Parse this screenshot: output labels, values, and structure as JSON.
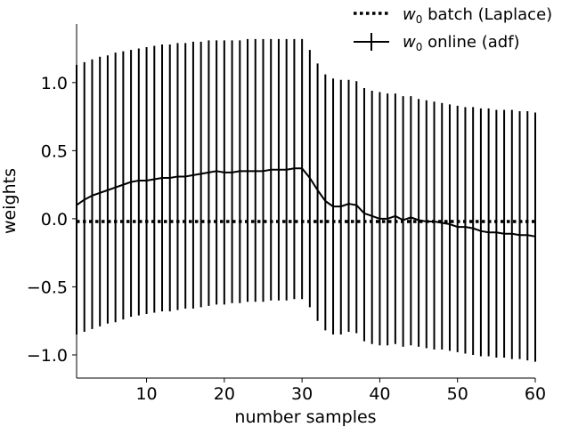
{
  "chart_data": {
    "type": "line",
    "title": "",
    "xlabel": "number samples",
    "ylabel": "weights",
    "xlim": [
      1,
      60
    ],
    "ylim": [
      -1.17,
      1.43
    ],
    "xticks": [
      10,
      20,
      30,
      40,
      50,
      60
    ],
    "yticks": [
      1.0,
      0.5,
      0.0,
      -0.5,
      -1.0
    ],
    "ytick_labels": [
      "1.0",
      "0.5",
      "0.0",
      "−0.5",
      "−1.0"
    ],
    "grid": false,
    "legend_position": "top-right",
    "series": [
      {
        "name": "batch",
        "legend_label": "w0 batch (Laplace)",
        "legend_symbol": "w",
        "legend_subscript": "0",
        "legend_text": " batch (Laplace)",
        "style": "dotted",
        "color": "#000000",
        "x": [
          1,
          60
        ],
        "y": [
          -0.02,
          -0.02
        ]
      },
      {
        "name": "online",
        "legend_label": "w0 online (adf)",
        "legend_symbol": "w",
        "legend_subscript": "0",
        "legend_text": " online (adf)",
        "style": "solid",
        "color": "#000000",
        "error_bars": true,
        "x": [
          1,
          2,
          3,
          4,
          5,
          6,
          7,
          8,
          9,
          10,
          11,
          12,
          13,
          14,
          15,
          16,
          17,
          18,
          19,
          20,
          21,
          22,
          23,
          24,
          25,
          26,
          27,
          28,
          29,
          30,
          31,
          32,
          33,
          34,
          35,
          36,
          37,
          38,
          39,
          40,
          41,
          42,
          43,
          44,
          45,
          46,
          47,
          48,
          49,
          50,
          51,
          52,
          53,
          54,
          55,
          56,
          57,
          58,
          59,
          60
        ],
        "y": [
          0.1,
          0.14,
          0.17,
          0.19,
          0.21,
          0.23,
          0.25,
          0.27,
          0.28,
          0.28,
          0.29,
          0.3,
          0.3,
          0.31,
          0.31,
          0.32,
          0.33,
          0.34,
          0.35,
          0.34,
          0.34,
          0.35,
          0.35,
          0.35,
          0.35,
          0.36,
          0.36,
          0.36,
          0.37,
          0.37,
          0.3,
          0.21,
          0.13,
          0.09,
          0.09,
          0.11,
          0.1,
          0.04,
          0.02,
          0.0,
          0.0,
          0.02,
          -0.01,
          0.01,
          -0.01,
          -0.02,
          -0.02,
          -0.03,
          -0.04,
          -0.06,
          -0.06,
          -0.07,
          -0.09,
          -0.1,
          -0.1,
          -0.11,
          -0.11,
          -0.12,
          -0.12,
          -0.13
        ],
        "upper": [
          1.13,
          1.15,
          1.17,
          1.19,
          1.2,
          1.22,
          1.23,
          1.24,
          1.25,
          1.26,
          1.27,
          1.28,
          1.28,
          1.29,
          1.29,
          1.3,
          1.3,
          1.31,
          1.31,
          1.31,
          1.31,
          1.31,
          1.32,
          1.32,
          1.32,
          1.32,
          1.32,
          1.32,
          1.32,
          1.32,
          1.24,
          1.14,
          1.06,
          1.03,
          1.02,
          1.02,
          1.01,
          0.96,
          0.94,
          0.93,
          0.92,
          0.92,
          0.9,
          0.9,
          0.88,
          0.87,
          0.86,
          0.85,
          0.84,
          0.83,
          0.82,
          0.82,
          0.81,
          0.81,
          0.8,
          0.8,
          0.8,
          0.79,
          0.79,
          0.78
        ],
        "lower": [
          -0.85,
          -0.83,
          -0.81,
          -0.79,
          -0.77,
          -0.76,
          -0.74,
          -0.72,
          -0.71,
          -0.7,
          -0.69,
          -0.68,
          -0.68,
          -0.67,
          -0.66,
          -0.66,
          -0.65,
          -0.64,
          -0.63,
          -0.63,
          -0.62,
          -0.62,
          -0.61,
          -0.61,
          -0.61,
          -0.6,
          -0.6,
          -0.6,
          -0.59,
          -0.59,
          -0.65,
          -0.75,
          -0.82,
          -0.85,
          -0.85,
          -0.83,
          -0.84,
          -0.9,
          -0.92,
          -0.93,
          -0.93,
          -0.92,
          -0.94,
          -0.93,
          -0.94,
          -0.95,
          -0.96,
          -0.96,
          -0.97,
          -0.98,
          -0.99,
          -1.0,
          -1.01,
          -1.01,
          -1.02,
          -1.02,
          -1.03,
          -1.03,
          -1.04,
          -1.05
        ]
      }
    ]
  }
}
